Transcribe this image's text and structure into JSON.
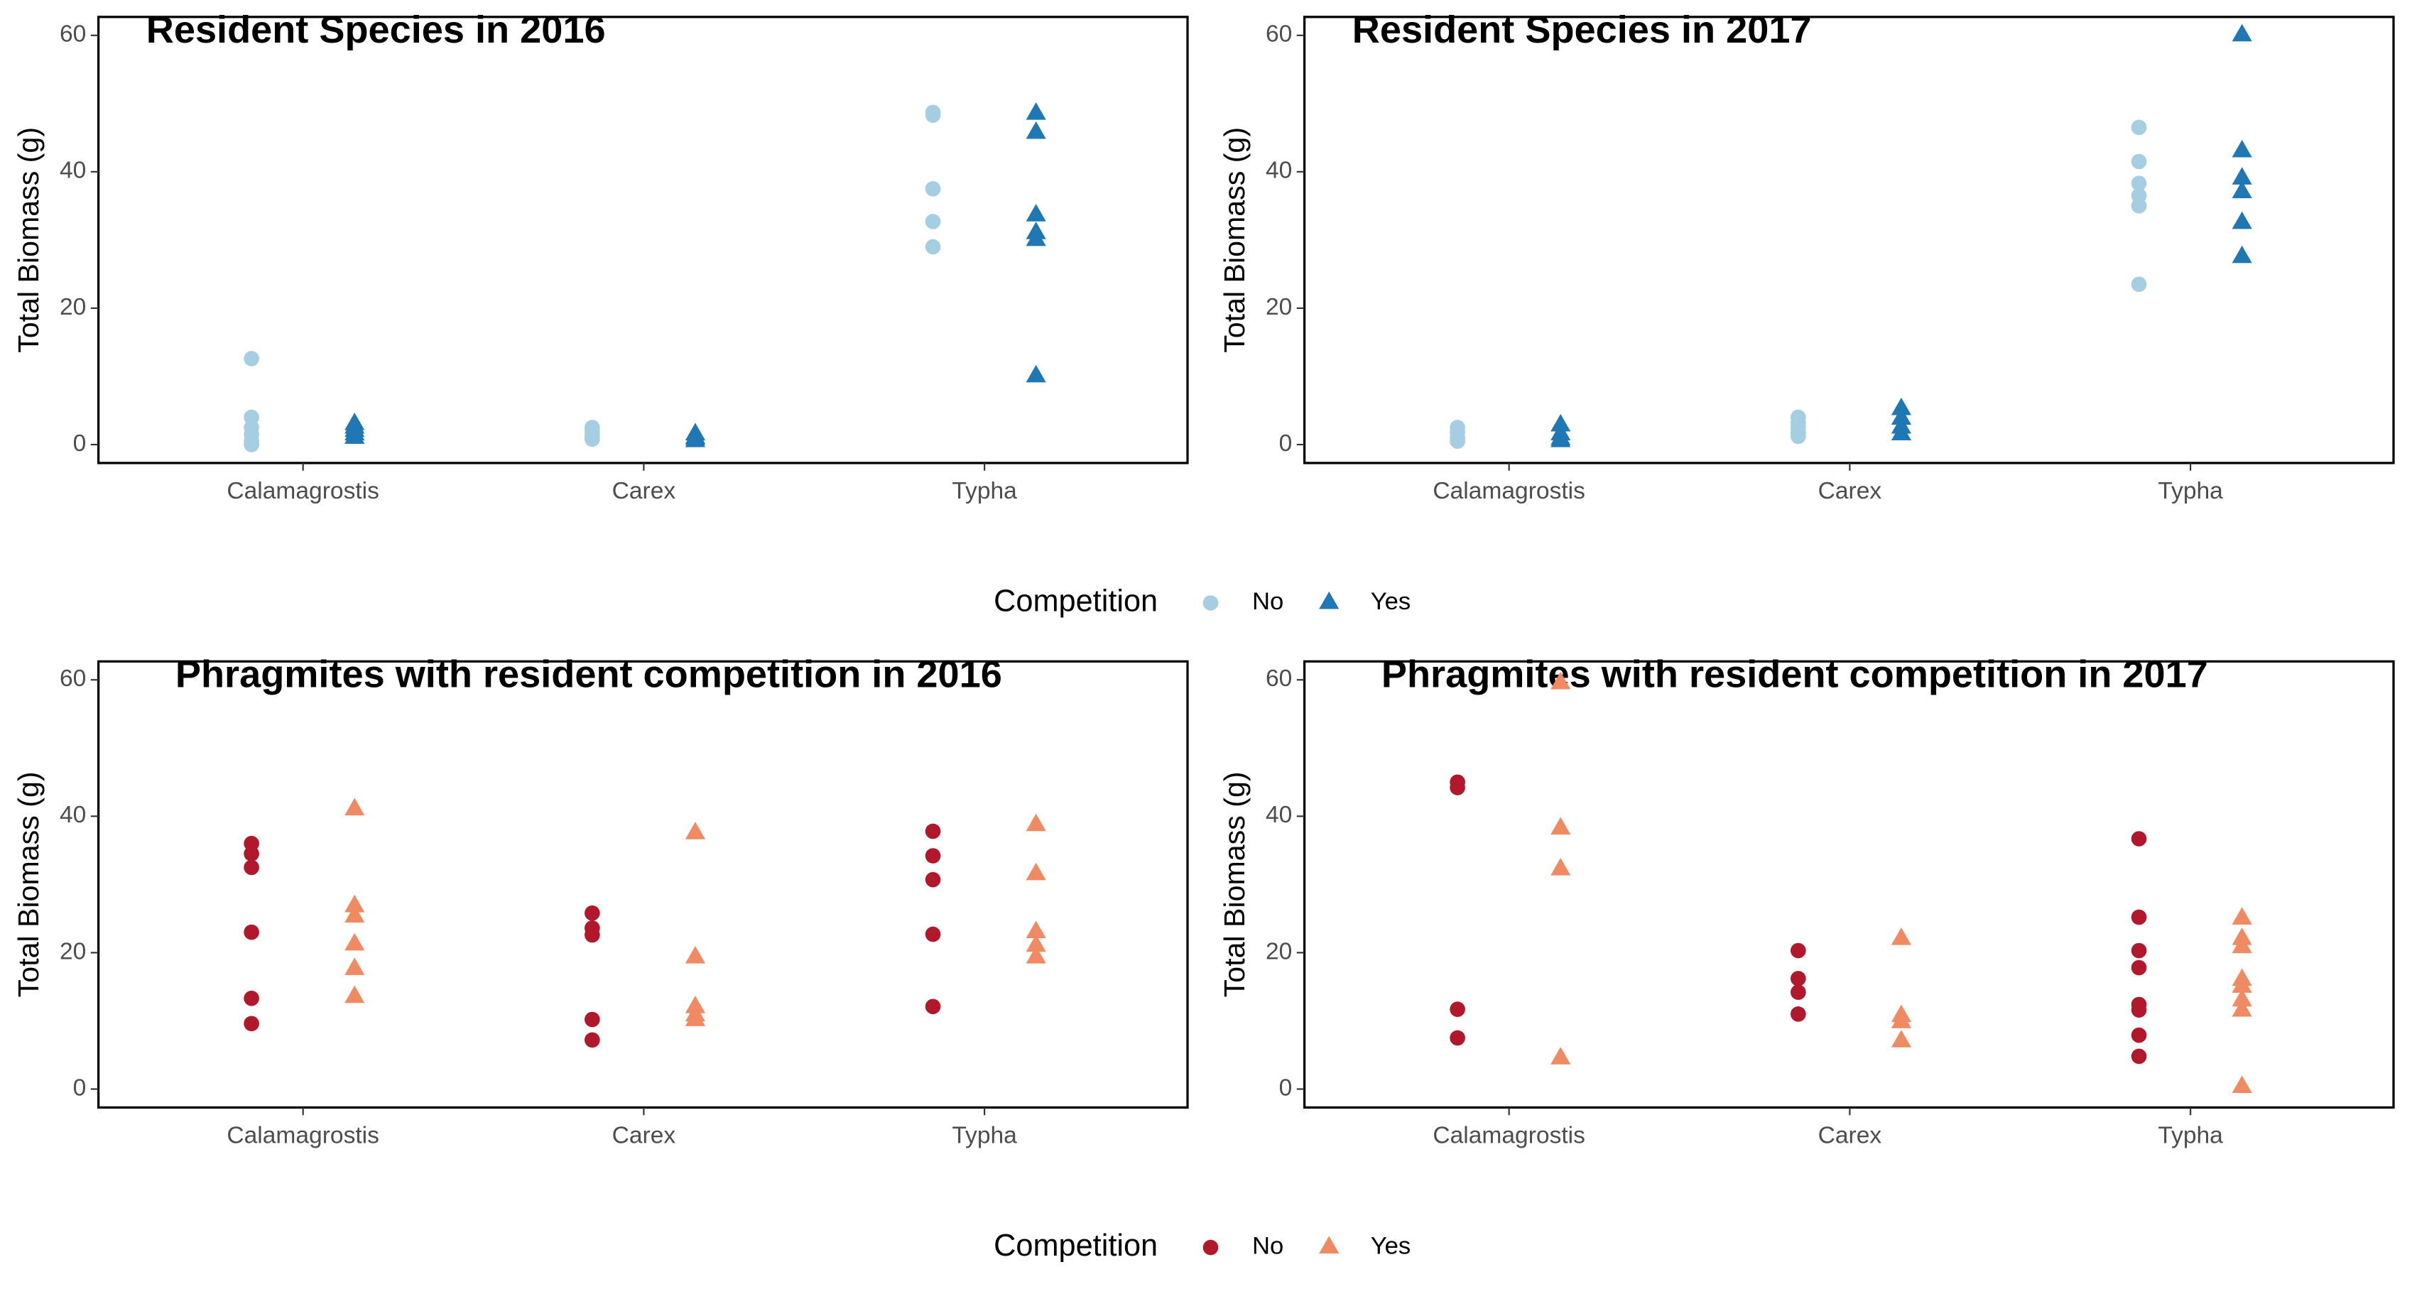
{
  "chart_data": [
    {
      "type": "scatter",
      "title": "Resident Species in 2016",
      "y_label": "Total Biomass (g)",
      "legend_title": "Competition",
      "categories": [
        "Calamagrostis",
        "Carex",
        "Typha"
      ],
      "ylim": [
        -2.7,
        62.7
      ],
      "yticks": [
        0,
        20,
        40,
        60
      ],
      "series": [
        {
          "name": "No",
          "color": "#a6cee3",
          "shape": "circle",
          "x": [
            "Calamagrostis",
            "Calamagrostis",
            "Calamagrostis",
            "Calamagrostis",
            "Calamagrostis",
            "Calamagrostis",
            "Carex",
            "Carex",
            "Carex",
            "Carex",
            "Carex",
            "Typha",
            "Typha",
            "Typha",
            "Typha",
            "Typha"
          ],
          "values": [
            12.6,
            4,
            2.5,
            1.5,
            0.5,
            0,
            2.5,
            2,
            1.5,
            1,
            0.8,
            48.7,
            48.3,
            37.5,
            32.7,
            29
          ]
        },
        {
          "name": "Yes",
          "color": "#1f78b4",
          "shape": "triangle",
          "x": [
            "Calamagrostis",
            "Calamagrostis",
            "Calamagrostis",
            "Calamagrostis",
            "Calamagrostis",
            "Calamagrostis",
            "Carex",
            "Carex",
            "Carex",
            "Carex",
            "Typha",
            "Typha",
            "Typha",
            "Typha",
            "Typha",
            "Typha"
          ],
          "values": [
            3,
            2.5,
            2,
            1.5,
            1,
            1,
            1.5,
            1,
            0.8,
            0.5,
            48.5,
            45.7,
            33.6,
            31,
            30,
            10
          ]
        }
      ]
    },
    {
      "type": "scatter",
      "title": "Resident Species in 2017",
      "y_label": "Total Biomass (g)",
      "categories": [
        "Calamagrostis",
        "Carex",
        "Typha"
      ],
      "ylim": [
        -2.7,
        62.7
      ],
      "yticks": [
        0,
        20,
        40,
        60
      ],
      "series": [
        {
          "color": "#a6cee3",
          "shape": "circle",
          "x": [
            "Calamagrostis",
            "Calamagrostis",
            "Calamagrostis",
            "Calamagrostis",
            "Carex",
            "Carex",
            "Carex",
            "Carex",
            "Carex",
            "Typha",
            "Typha",
            "Typha",
            "Typha",
            "Typha",
            "Typha"
          ],
          "values": [
            2.5,
            1.8,
            1,
            0.5,
            4,
            3.2,
            2.5,
            1.8,
            1.2,
            46.5,
            41.5,
            38.3,
            36.5,
            35,
            23.5
          ]
        },
        {
          "color": "#1f78b4",
          "shape": "triangle",
          "x": [
            "Calamagrostis",
            "Calamagrostis",
            "Calamagrostis",
            "Calamagrostis",
            "Carex",
            "Carex",
            "Carex",
            "Carex",
            "Typha",
            "Typha",
            "Typha",
            "Typha",
            "Typha",
            "Typha"
          ],
          "values": [
            2.8,
            1.5,
            0.8,
            0.5,
            5.2,
            3.8,
            2.5,
            1.5,
            60,
            43,
            39,
            37,
            32.5,
            27.5
          ]
        }
      ]
    },
    {
      "type": "scatter",
      "title": "Phragmites with resident competition in 2016",
      "y_label": "Total Biomass (g)",
      "legend_title": "Competition",
      "categories": [
        "Calamagrostis",
        "Carex",
        "Typha"
      ],
      "ylim": [
        -2.7,
        62.7
      ],
      "yticks": [
        0,
        20,
        40,
        60
      ],
      "series": [
        {
          "name": "No",
          "color": "#b2182b",
          "shape": "circle",
          "x": [
            "Calamagrostis",
            "Calamagrostis",
            "Calamagrostis",
            "Calamagrostis",
            "Calamagrostis",
            "Calamagrostis",
            "Carex",
            "Carex",
            "Carex",
            "Carex",
            "Carex",
            "Typha",
            "Typha",
            "Typha",
            "Typha",
            "Typha"
          ],
          "values": [
            36,
            34.5,
            32.5,
            23,
            13.3,
            9.6,
            25.8,
            23.6,
            22.6,
            10.2,
            7.2,
            37.8,
            34.2,
            30.7,
            22.7,
            12.1
          ]
        },
        {
          "name": "Yes",
          "color": "#ef8a62",
          "shape": "triangle",
          "x": [
            "Calamagrostis",
            "Calamagrostis",
            "Calamagrostis",
            "Calamagrostis",
            "Calamagrostis",
            "Calamagrostis",
            "Carex",
            "Carex",
            "Carex",
            "Carex",
            "Carex",
            "Typha",
            "Typha",
            "Typha",
            "Typha",
            "Typha"
          ],
          "values": [
            41,
            26.8,
            25.3,
            21.2,
            17.6,
            13.5,
            37.5,
            19.3,
            12,
            10.8,
            10.1,
            38.7,
            31.5,
            23,
            21,
            19.3
          ]
        }
      ]
    },
    {
      "type": "scatter",
      "title": "Phragmites with resident competition in 2017",
      "y_label": "Total Biomass (g)",
      "categories": [
        "Calamagrostis",
        "Carex",
        "Typha"
      ],
      "ylim": [
        -2.7,
        62.7
      ],
      "yticks": [
        0,
        20,
        40,
        60
      ],
      "series": [
        {
          "color": "#b2182b",
          "shape": "circle",
          "x": [
            "Calamagrostis",
            "Calamagrostis",
            "Calamagrostis",
            "Calamagrostis",
            "Carex",
            "Carex",
            "Carex",
            "Carex",
            "Typha",
            "Typha",
            "Typha",
            "Typha",
            "Typha",
            "Typha",
            "Typha",
            "Typha"
          ],
          "values": [
            45,
            44.2,
            11.7,
            7.5,
            20.3,
            16.2,
            14.2,
            11,
            36.7,
            25.2,
            20.3,
            17.8,
            12.4,
            11.6,
            7.9,
            4.8
          ]
        },
        {
          "color": "#ef8a62",
          "shape": "triangle",
          "x": [
            "Calamagrostis",
            "Calamagrostis",
            "Calamagrostis",
            "Calamagrostis",
            "Carex",
            "Carex",
            "Carex",
            "Carex",
            "Typha",
            "Typha",
            "Typha",
            "Typha",
            "Typha",
            "Typha",
            "Typha",
            "Typha"
          ],
          "values": [
            59.5,
            38.2,
            32.2,
            4.5,
            22,
            10.7,
            9.8,
            7,
            25,
            22,
            20.8,
            16,
            15,
            13,
            11.5,
            0.3
          ]
        }
      ]
    }
  ]
}
